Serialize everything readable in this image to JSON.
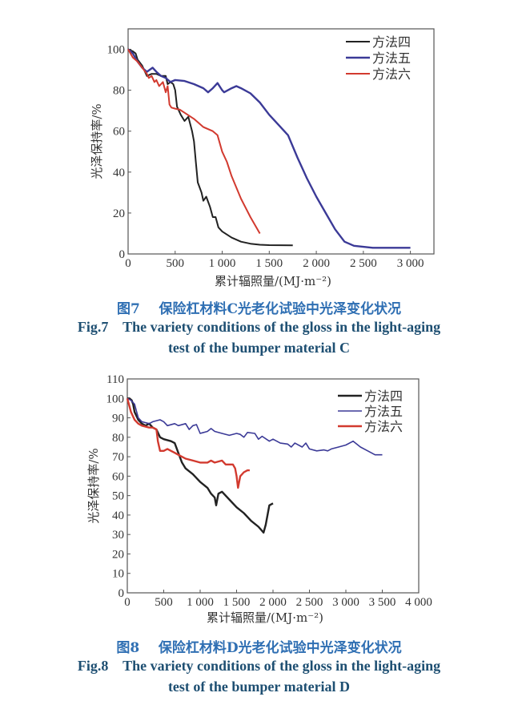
{
  "chart_data": [
    {
      "type": "line",
      "figure_label": "图7",
      "caption_cn": "保险杠材料C光老化试验中光泽变化状况",
      "caption_en_label": "Fig.7",
      "caption_en_line1": "The variety conditions of the gloss in the light-aging",
      "caption_en_line2": "test of the bumper material C",
      "xlabel": "累计辐照量/(MJ·m⁻²)",
      "ylabel": "光泽保持率/%",
      "xlim": [
        0,
        3250
      ],
      "ylim": [
        0,
        110
      ],
      "xticks": [
        0,
        500,
        1000,
        1500,
        2000,
        2500,
        3000
      ],
      "xtick_labels": [
        "0",
        "500",
        "1 000",
        "1 500",
        "2 000",
        "2 500",
        "3 000"
      ],
      "yticks": [
        0,
        20,
        40,
        60,
        80,
        100
      ],
      "ytick_labels": [
        "0",
        "20",
        "40",
        "60",
        "80",
        "100"
      ],
      "grid": false,
      "legend": "top-right",
      "series": [
        {
          "name": "方法四",
          "color": "#222222",
          "x": [
            0,
            50,
            80,
            100,
            150,
            200,
            250,
            300,
            350,
            400,
            420,
            450,
            480,
            500,
            520,
            560,
            600,
            640,
            680,
            700,
            720,
            740,
            780,
            800,
            830,
            870,
            900,
            930,
            960,
            1000,
            1100,
            1200,
            1300,
            1400,
            1500,
            1750
          ],
          "y": [
            100,
            99,
            98,
            95,
            92,
            87,
            88,
            88,
            87,
            87,
            83,
            84,
            83,
            80,
            72,
            68,
            65,
            67,
            60,
            55,
            45,
            35,
            30,
            26,
            28,
            23,
            18,
            18,
            13,
            11,
            8,
            6,
            5,
            4.5,
            4.3,
            4.2
          ]
        },
        {
          "name": "方法五",
          "color": "#3b3a97",
          "x": [
            0,
            50,
            100,
            150,
            200,
            260,
            300,
            350,
            400,
            450,
            500,
            600,
            700,
            800,
            850,
            900,
            950,
            1000,
            1020,
            1100,
            1150,
            1200,
            1300,
            1400,
            1500,
            1600,
            1700,
            1800,
            1900,
            2000,
            2100,
            2200,
            2300,
            2400,
            2500,
            2600,
            3000
          ],
          "y": [
            100,
            98,
            94,
            91,
            89,
            91,
            89,
            87,
            86,
            84,
            85,
            84.5,
            83,
            81,
            79,
            81,
            83.5,
            80,
            79,
            81,
            82,
            81,
            78.5,
            74,
            68,
            63,
            58,
            47,
            37,
            28,
            20,
            12,
            6,
            4,
            3.5,
            3,
            3
          ]
        },
        {
          "name": "方法六",
          "color": "#d23a2f",
          "x": [
            0,
            50,
            100,
            200,
            220,
            250,
            280,
            300,
            330,
            370,
            400,
            420,
            440,
            460,
            500,
            550,
            600,
            700,
            800,
            900,
            950,
            1000,
            1050,
            1100,
            1200,
            1300,
            1400
          ],
          "y": [
            100,
            96,
            94,
            88,
            86,
            87,
            84,
            85,
            82,
            84,
            79,
            82,
            73,
            71.5,
            71,
            70.5,
            69,
            66,
            62,
            60,
            58,
            50,
            45,
            38,
            27,
            18,
            10
          ]
        }
      ]
    },
    {
      "type": "line",
      "figure_label": "图8",
      "caption_cn": "保险杠材料D光老化试验中光泽变化状况",
      "caption_en_label": "Fig.8",
      "caption_en_line1": "The variety conditions of the gloss in the light-aging",
      "caption_en_line2": "test of the bumper material D",
      "xlabel": "累计辐照量/(MJ·m⁻²)",
      "ylabel": "光泽保持率/%",
      "xlim": [
        0,
        4000
      ],
      "ylim": [
        0,
        110
      ],
      "xticks": [
        0,
        500,
        1000,
        1500,
        2000,
        2500,
        3000,
        3500,
        4000
      ],
      "xtick_labels": [
        "0",
        "500",
        "1 000",
        "1 500",
        "2 000",
        "2 500",
        "3 000",
        "3 500",
        "4 000"
      ],
      "yticks": [
        0,
        10,
        20,
        30,
        40,
        50,
        60,
        70,
        80,
        90,
        100,
        110
      ],
      "ytick_labels": [
        "0",
        "10",
        "20",
        "30",
        "40",
        "50",
        "60",
        "70",
        "80",
        "90",
        "100",
        "110"
      ],
      "grid": false,
      "legend": "top-right",
      "series": [
        {
          "name": "方法四",
          "color": "#222222",
          "x": [
            0,
            30,
            60,
            80,
            100,
            150,
            200,
            250,
            300,
            350,
            400,
            450,
            500,
            600,
            650,
            700,
            750,
            800,
            900,
            1000,
            1100,
            1150,
            1200,
            1220,
            1250,
            1300,
            1400,
            1500,
            1600,
            1700,
            1800,
            1870,
            1900,
            1950,
            2000
          ],
          "y": [
            100,
            100,
            99,
            97,
            93,
            89,
            87,
            86,
            87,
            85,
            84,
            80,
            79,
            78,
            77,
            72,
            67,
            64,
            61,
            57,
            54,
            51,
            49,
            45,
            51,
            52,
            48,
            44,
            41,
            37,
            34,
            31,
            35,
            45,
            46
          ]
        },
        {
          "name": "方法五",
          "color": "#3b3a97",
          "x": [
            0,
            50,
            100,
            150,
            200,
            300,
            350,
            450,
            500,
            550,
            650,
            700,
            800,
            850,
            900,
            950,
            1000,
            1100,
            1150,
            1200,
            1300,
            1400,
            1500,
            1550,
            1600,
            1650,
            1750,
            1800,
            1850,
            1950,
            2000,
            2100,
            2200,
            2250,
            2300,
            2400,
            2450,
            2500,
            2600,
            2700,
            2750,
            2800,
            2900,
            3000,
            3100,
            3200,
            3300,
            3400,
            3500
          ],
          "y": [
            100,
            99,
            97,
            90,
            88,
            87,
            88,
            89,
            88,
            86,
            87,
            86,
            87,
            84,
            86,
            86.5,
            82,
            83,
            84.5,
            83,
            82,
            81,
            82,
            81.5,
            80,
            82.5,
            82,
            79,
            80.5,
            78,
            79,
            77,
            76.5,
            75,
            77,
            75,
            77,
            74,
            73,
            73.5,
            73,
            74,
            75,
            76,
            78,
            75,
            73,
            71,
            71
          ]
        },
        {
          "name": "方法六",
          "color": "#d23a2f",
          "x": [
            0,
            50,
            100,
            150,
            200,
            300,
            350,
            400,
            420,
            450,
            500,
            550,
            600,
            650,
            700,
            800,
            900,
            1000,
            1100,
            1150,
            1200,
            1300,
            1350,
            1450,
            1480,
            1500,
            1520,
            1550,
            1600,
            1650,
            1680
          ],
          "y": [
            100,
            93,
            89,
            87,
            86,
            85,
            85,
            84,
            78,
            73,
            73,
            74,
            73,
            72,
            71,
            69,
            68,
            67,
            67,
            68,
            67,
            68,
            66,
            66,
            64,
            60,
            54,
            60,
            62,
            63,
            63
          ]
        }
      ]
    }
  ]
}
